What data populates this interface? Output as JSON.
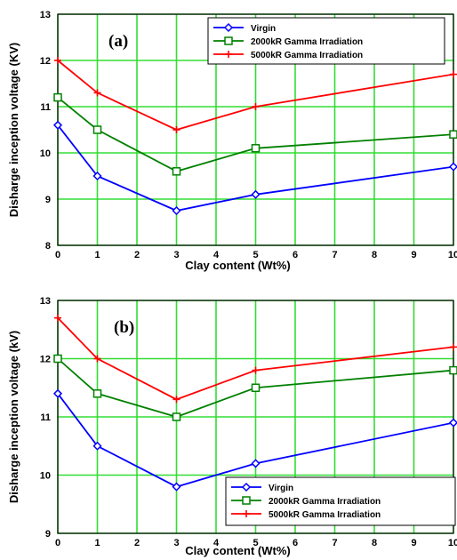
{
  "chart_data": [
    {
      "type": "line",
      "panel_label": "(a)",
      "xlabel": "Clay content (Wt%)",
      "ylabel": "Disharge inception voltage (KV)",
      "x": [
        0,
        1,
        3,
        5,
        10
      ],
      "xlim": [
        0,
        10
      ],
      "ylim": [
        8,
        13
      ],
      "xticks": [
        "0",
        "1",
        "2",
        "3",
        "4",
        "5",
        "6",
        "7",
        "8",
        "9",
        "10"
      ],
      "yticks": [
        "8",
        "9",
        "10",
        "11",
        "12",
        "13"
      ],
      "grid": true,
      "legend_position": "top-right",
      "series": [
        {
          "name": "Virgin",
          "color": "#0000ff",
          "marker": "diamond",
          "values": [
            10.6,
            9.5,
            8.75,
            9.1,
            9.7
          ]
        },
        {
          "name": "2000kR Gamma Irradiation",
          "color": "#008000",
          "marker": "square",
          "values": [
            11.2,
            10.5,
            9.6,
            10.1,
            10.4
          ]
        },
        {
          "name": "5000kR Gamma Irradiation",
          "color": "#ff0000",
          "marker": "plus",
          "values": [
            12.0,
            11.3,
            10.5,
            11.0,
            11.7
          ]
        }
      ]
    },
    {
      "type": "line",
      "panel_label": "(b)",
      "xlabel": "Clay content (Wt%)",
      "ylabel": "Disharge inception voltage (kV)",
      "x": [
        0,
        1,
        3,
        5,
        10
      ],
      "xlim": [
        0,
        10
      ],
      "ylim": [
        9,
        13
      ],
      "xticks": [
        "0",
        "1",
        "2",
        "3",
        "4",
        "5",
        "6",
        "7",
        "8",
        "9",
        "10"
      ],
      "yticks": [
        "9",
        "10",
        "11",
        "12",
        "13"
      ],
      "grid": true,
      "legend_position": "bottom-right",
      "series": [
        {
          "name": "Virgin",
          "color": "#0000ff",
          "marker": "diamond",
          "values": [
            11.4,
            10.5,
            9.8,
            10.2,
            10.9
          ]
        },
        {
          "name": "2000kR Gamma Irradiation",
          "color": "#008000",
          "marker": "square",
          "values": [
            12.0,
            11.4,
            11.0,
            11.5,
            11.8
          ]
        },
        {
          "name": "5000kR Gamma Irradiation",
          "color": "#ff0000",
          "marker": "plus",
          "values": [
            12.7,
            12.0,
            11.3,
            11.8,
            12.2
          ]
        }
      ]
    }
  ]
}
